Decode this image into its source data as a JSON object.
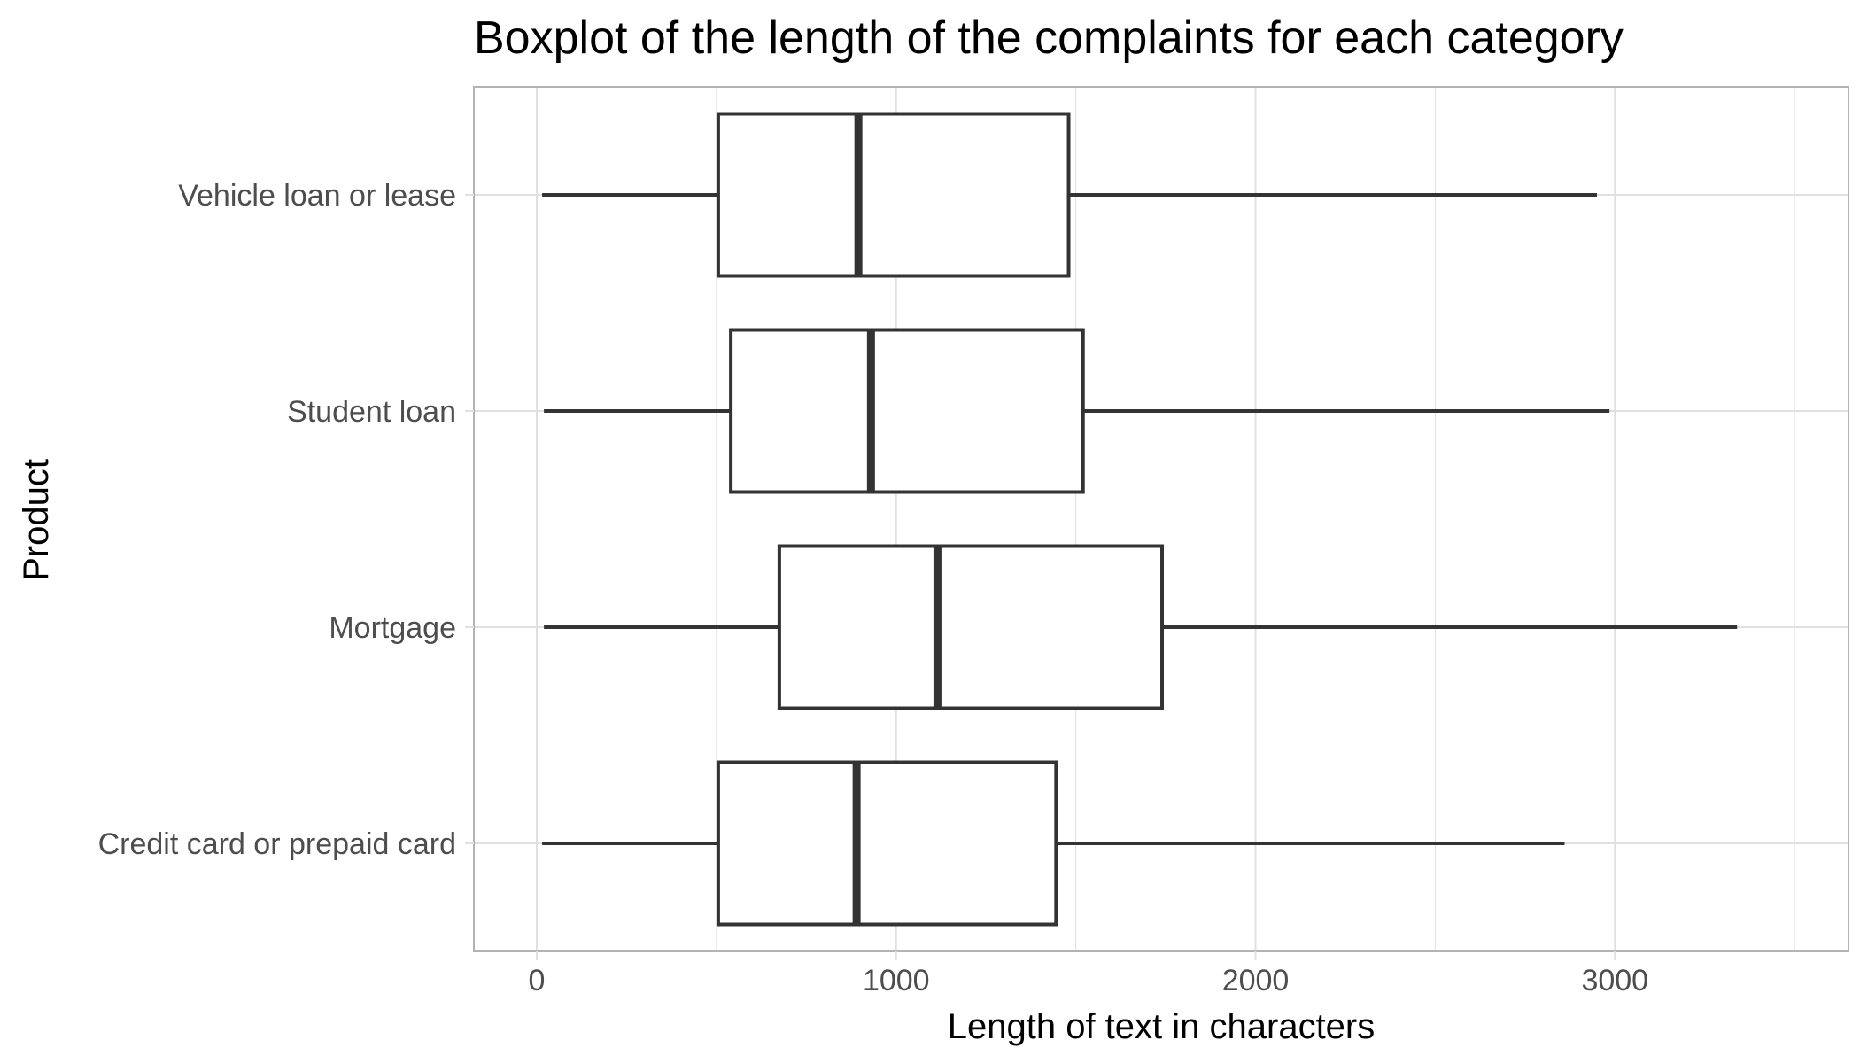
{
  "chart_data": {
    "type": "boxplot",
    "title": "Boxplot of the length of the complaints for each category",
    "xlabel": "Length of text in characters",
    "ylabel": "Product",
    "xlim": [
      -175,
      3650
    ],
    "x_ticks": [
      0,
      1000,
      2000,
      3000
    ],
    "x_tick_labels": [
      "0",
      "1000",
      "2000",
      "3000"
    ],
    "grid": true,
    "orientation": "horizontal",
    "colors": {
      "box_stroke": "#333333",
      "box_fill": "#ffffff",
      "grid": "#e0e0e0",
      "panel_border": "#b3b3b3"
    },
    "categories": [
      "Credit card or prepaid card",
      "Mortgage",
      "Student loan",
      "Vehicle loan or lease"
    ],
    "boxes": [
      {
        "category": "Credit card or prepaid card",
        "min": 15,
        "q1": 505,
        "median": 890,
        "q3": 1445,
        "max": 2860
      },
      {
        "category": "Mortgage",
        "min": 20,
        "q1": 675,
        "median": 1115,
        "q3": 1740,
        "max": 3340
      },
      {
        "category": "Student loan",
        "min": 20,
        "q1": 540,
        "median": 930,
        "q3": 1520,
        "max": 2985
      },
      {
        "category": "Vehicle loan or lease",
        "min": 15,
        "q1": 505,
        "median": 895,
        "q3": 1480,
        "max": 2950
      }
    ]
  }
}
